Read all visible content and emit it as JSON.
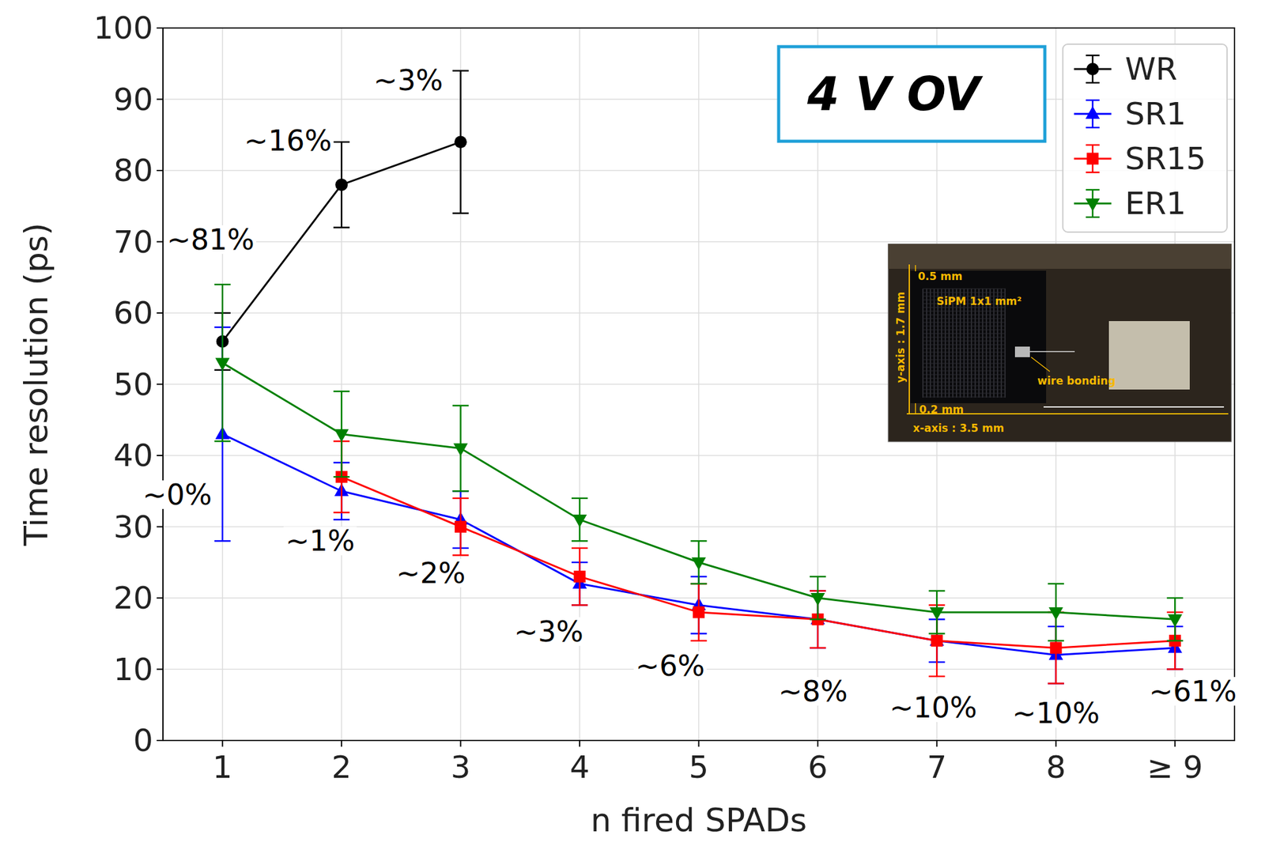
{
  "chart_data": {
    "type": "line",
    "x_label": "n fired SPADs",
    "y_label": "Time resolution (ps)",
    "box_text": "4 V OV",
    "x": [
      1,
      2,
      3,
      4,
      5,
      6,
      7,
      8,
      9
    ],
    "xlim": [
      0.5,
      9.5
    ],
    "xticks": [
      1,
      2,
      3,
      4,
      5,
      6,
      7,
      8,
      {
        "value": 9,
        "label": "≥ 9"
      }
    ],
    "ylim": [
      0,
      100
    ],
    "yticks": [
      0,
      10,
      20,
      30,
      40,
      50,
      60,
      70,
      80,
      90,
      100
    ],
    "grid": true,
    "legend": "upper right",
    "series": [
      {
        "name": "WR",
        "color": "#000000",
        "marker": "circle",
        "values": [
          56,
          78,
          84,
          null,
          null,
          null,
          null,
          null,
          null
        ],
        "errors": [
          4,
          6,
          10,
          null,
          null,
          null,
          null,
          null,
          null
        ]
      },
      {
        "name": "SR1",
        "color": "#0000ff",
        "marker": "triangle-up",
        "values": [
          43,
          35,
          31,
          22,
          19,
          17,
          14,
          12,
          13
        ],
        "errors": [
          15,
          4,
          4,
          3,
          4,
          4,
          3,
          4,
          3
        ]
      },
      {
        "name": "SR15",
        "color": "#ff0000",
        "marker": "square",
        "values": [
          null,
          37,
          30,
          23,
          18,
          17,
          14,
          13,
          14
        ],
        "errors": [
          null,
          5,
          4,
          4,
          4,
          4,
          5,
          5,
          4
        ]
      },
      {
        "name": "ER1",
        "color": "#008000",
        "marker": "triangle-down",
        "values": [
          53,
          43,
          41,
          31,
          25,
          20,
          18,
          18,
          17
        ],
        "errors": [
          11,
          6,
          6,
          3,
          3,
          3,
          3,
          4,
          3
        ]
      }
    ],
    "annotations": [
      {
        "text": "~81%",
        "x": 0.9,
        "y": 70.3
      },
      {
        "text": "~16%",
        "x": 1.55,
        "y": 84.2
      },
      {
        "text": "~3%",
        "x": 2.56,
        "y": 92.7
      },
      {
        "text": "~0%",
        "x": 0.62,
        "y": 34.5
      },
      {
        "text": "~1%",
        "x": 1.82,
        "y": 28
      },
      {
        "text": "~2%",
        "x": 2.75,
        "y": 23.5
      },
      {
        "text": "~3%",
        "x": 3.74,
        "y": 15.3
      },
      {
        "text": "~6%",
        "x": 4.76,
        "y": 10.5
      },
      {
        "text": "~8%",
        "x": 5.96,
        "y": 6.9
      },
      {
        "text": "~10%",
        "x": 6.97,
        "y": 4.6
      },
      {
        "text": "~10%",
        "x": 8.0,
        "y": 3.8
      },
      {
        "text": "~61%",
        "x": 9.15,
        "y": 6.9
      }
    ],
    "inset_labels": [
      "0.5 mm",
      "SiPM 1x1 mm²",
      "wire bonding",
      "y-axis : 1.7 mm",
      "0.2 mm",
      "x-axis : 3.5 mm"
    ]
  }
}
